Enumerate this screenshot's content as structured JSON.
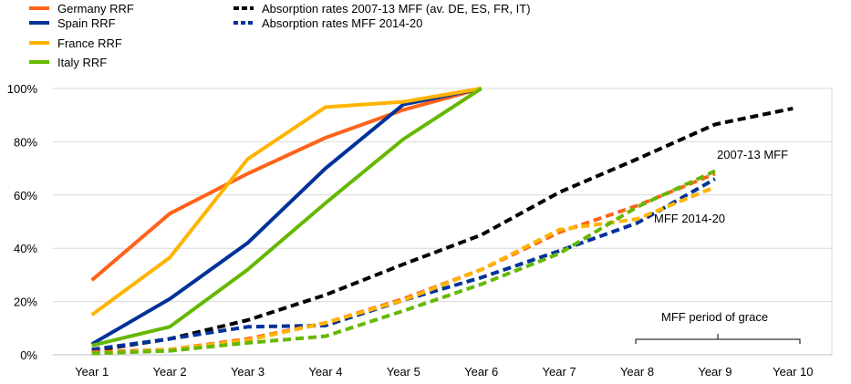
{
  "chart_data": {
    "type": "line",
    "title": "",
    "xlabel": "",
    "ylabel": "",
    "categories": [
      "Year 1",
      "Year 2",
      "Year 3",
      "Year 4",
      "Year 5",
      "Year 6",
      "Year 7",
      "Year 8",
      "Year 9",
      "Year 10"
    ],
    "ylim": [
      0,
      100
    ],
    "yticks": [
      "0%",
      "20%",
      "40%",
      "60%",
      "80%",
      "100%"
    ],
    "ytick_values": [
      0,
      20,
      40,
      60,
      80,
      100
    ],
    "grid": "horizontal",
    "legend_position": "top-left",
    "series": [
      {
        "name": "Germany RRF",
        "style": "solid",
        "color": "#ff6319",
        "values": [
          28,
          53,
          68,
          81.5,
          92,
          100,
          null,
          null,
          null,
          null
        ]
      },
      {
        "name": "Spain RRF",
        "style": "solid",
        "color": "#003299",
        "values": [
          4,
          21,
          42,
          70,
          94,
          100,
          null,
          null,
          null,
          null
        ]
      },
      {
        "name": "France RRF",
        "style": "solid",
        "color": "#ffb400",
        "values": [
          15,
          36.5,
          73.5,
          93,
          95,
          100,
          null,
          null,
          null,
          null
        ]
      },
      {
        "name": "Italy RRF",
        "style": "solid",
        "color": "#65b800",
        "values": [
          3.5,
          10.5,
          32,
          57,
          81,
          100,
          null,
          null,
          null,
          null
        ]
      },
      {
        "name": "Absorption rates 2007-13 MFF  (av. DE, ES, FR, IT)",
        "style": "dashed",
        "color": "#000000",
        "values": [
          1.5,
          6,
          13,
          22.5,
          34,
          45,
          61,
          73.5,
          86.5,
          92.5
        ]
      },
      {
        "name": "Absorption rates MFF 2014-20",
        "style": "dashed",
        "color": "#003299",
        "values": [
          2,
          6,
          10.5,
          11,
          20.5,
          29,
          39,
          49.5,
          66,
          null
        ]
      },
      {
        "name": "Germany MFF 2014-20",
        "style": "dashed",
        "color": "#ff6319",
        "in_legend": false,
        "values": [
          1,
          2,
          6,
          12,
          21,
          32,
          46,
          56,
          68,
          null
        ]
      },
      {
        "name": "France MFF 2014-20",
        "style": "dashed",
        "color": "#ffb400",
        "in_legend": false,
        "values": [
          0.5,
          2,
          5.5,
          12,
          20.5,
          32,
          47,
          51,
          63,
          null
        ]
      },
      {
        "name": "Italy MFF 2014-20",
        "style": "dashed",
        "color": "#65b800",
        "in_legend": false,
        "values": [
          0.5,
          1.5,
          4.5,
          7,
          16.5,
          26.5,
          38,
          55.5,
          69,
          null
        ]
      }
    ],
    "annotations": [
      {
        "text": "2007-13 MFF"
      },
      {
        "text": "MFF 2014-20"
      },
      {
        "text": "MFF period of grace",
        "bracket_from": "Year 8",
        "bracket_to": "Year 10"
      }
    ]
  }
}
